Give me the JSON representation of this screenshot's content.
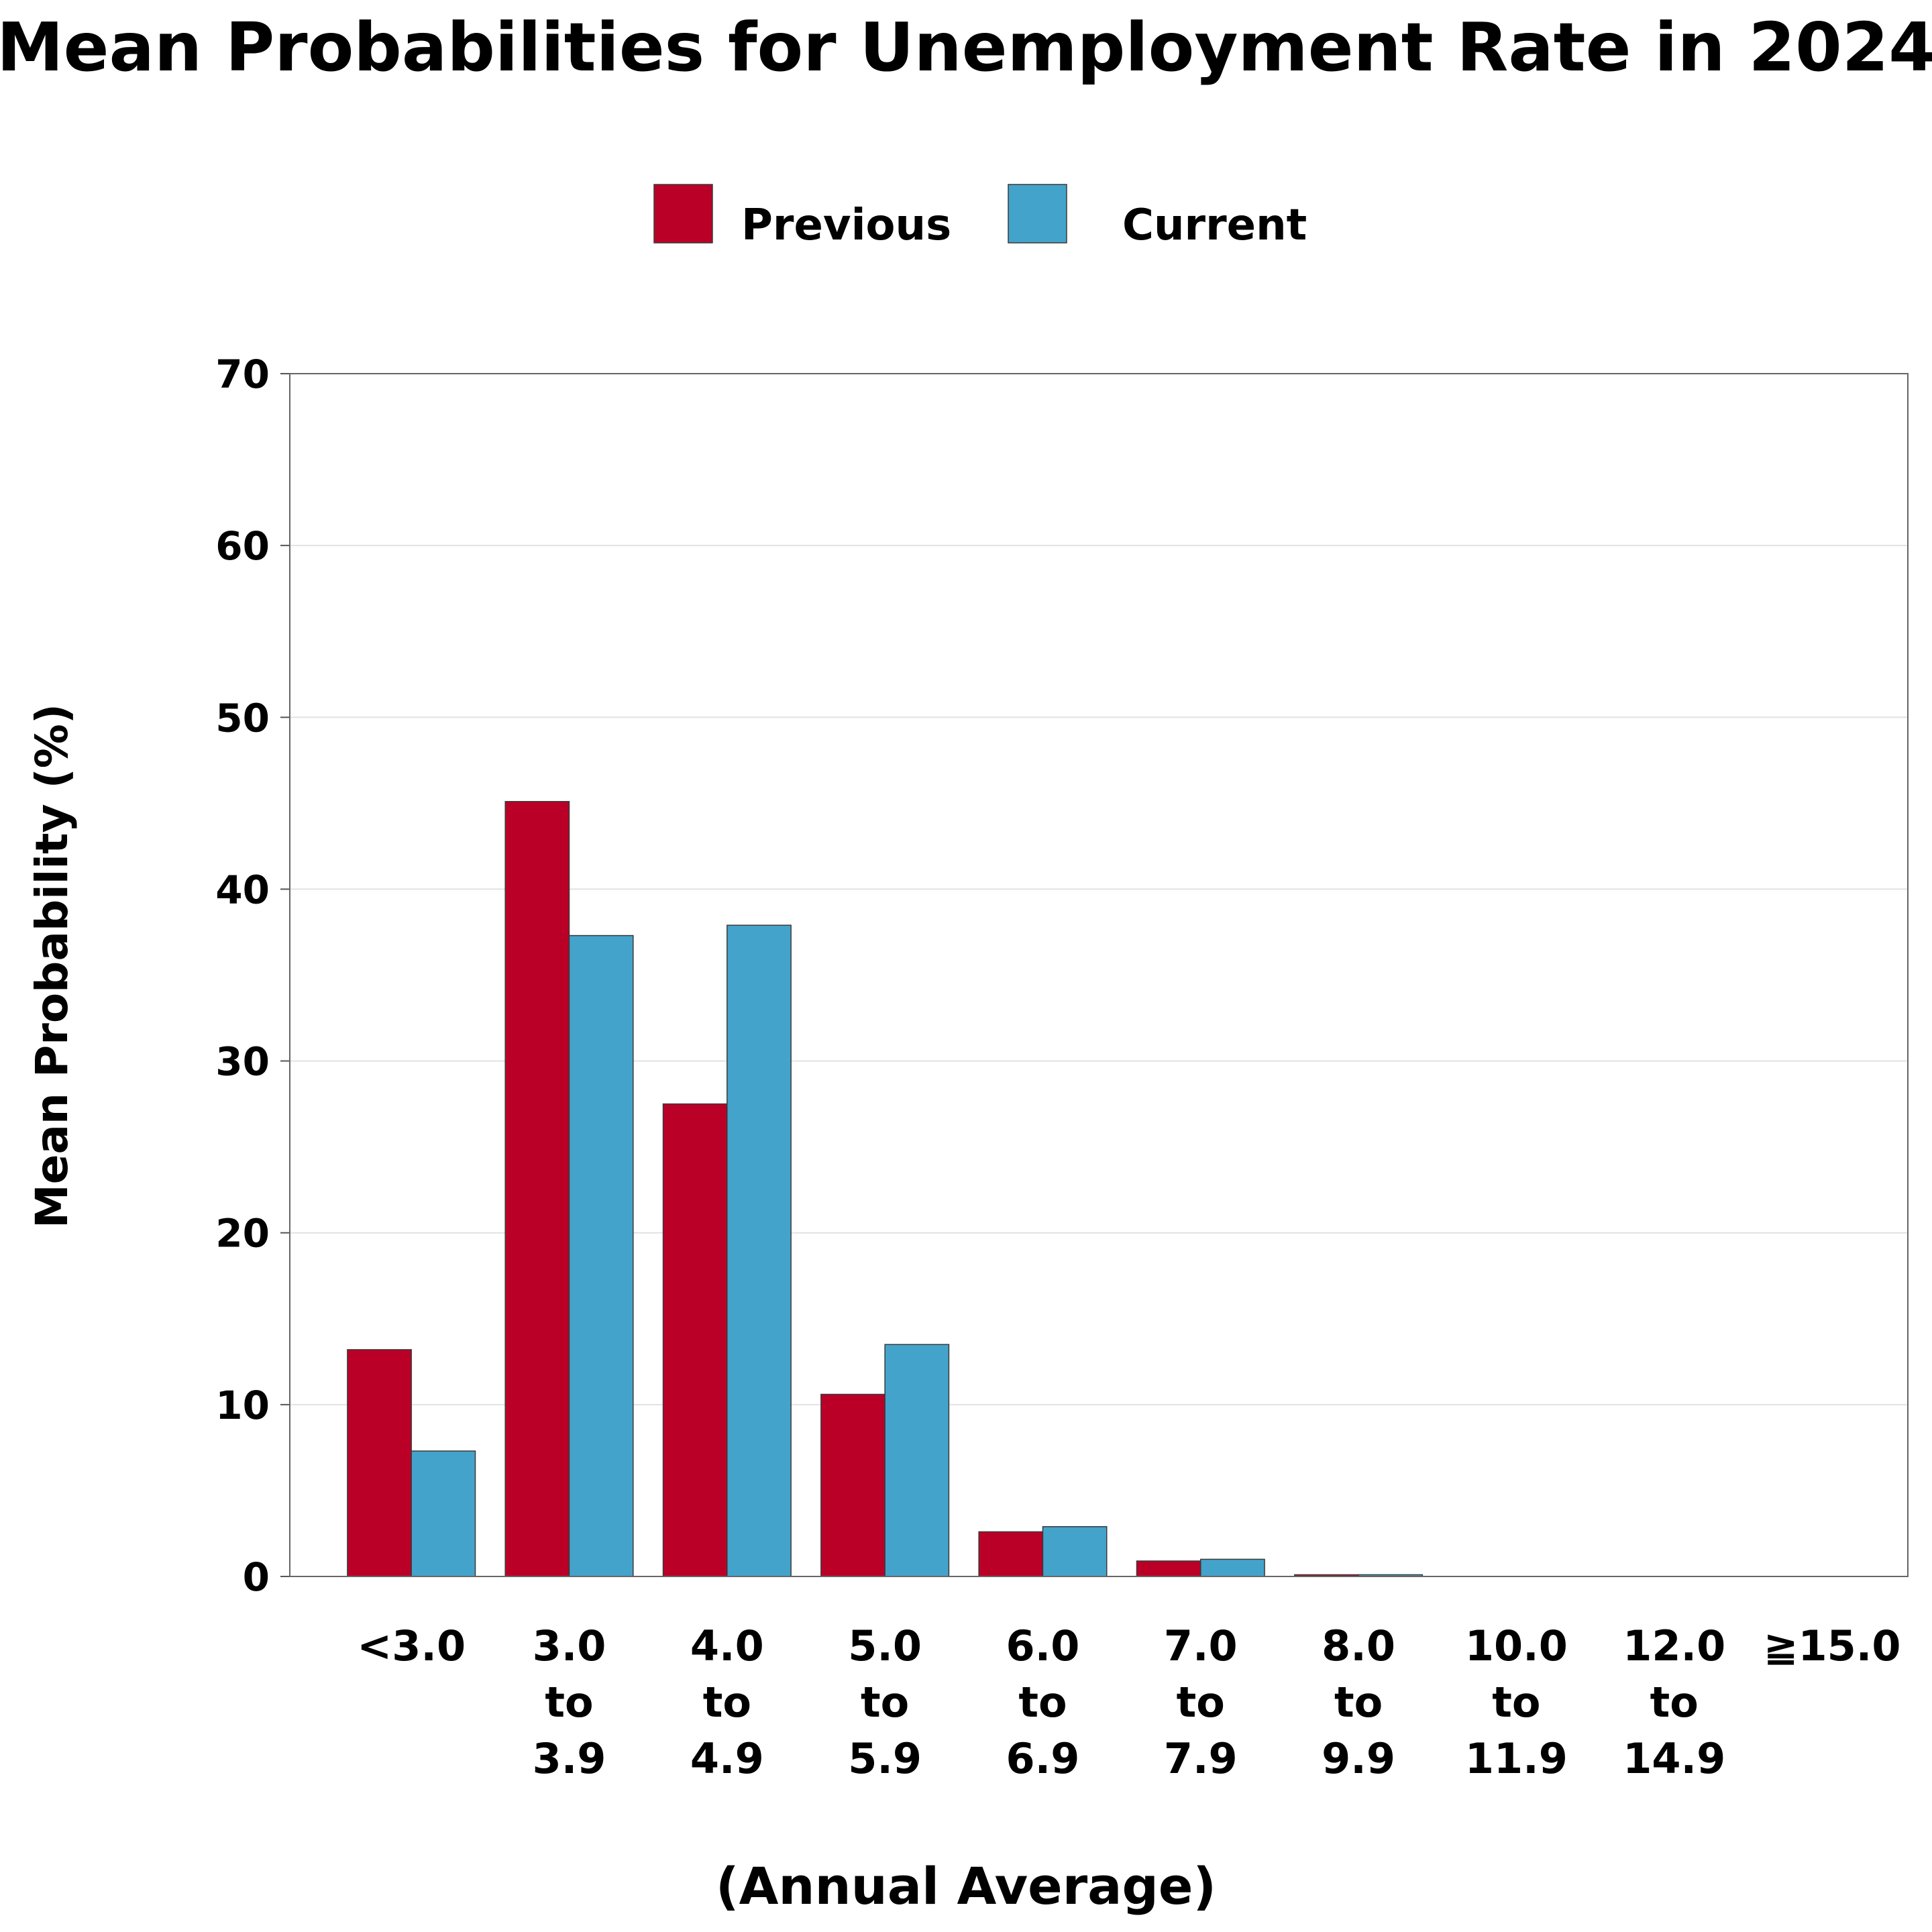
{
  "chart_data": {
    "type": "bar",
    "title": "Mean Probabilities for Unemployment Rate in 2024",
    "xlabel": "(Annual Average)",
    "ylabel": "Mean Probability (%)",
    "ylim": [
      0,
      70
    ],
    "yticks": [
      0,
      10,
      20,
      30,
      40,
      50,
      60,
      70
    ],
    "grid": true,
    "legend_position": "top-center",
    "categories": [
      [
        "<3.0"
      ],
      [
        "3.0",
        "to",
        "3.9"
      ],
      [
        "4.0",
        "to",
        "4.9"
      ],
      [
        "5.0",
        "to",
        "5.9"
      ],
      [
        "6.0",
        "to",
        "6.9"
      ],
      [
        "7.0",
        "to",
        "7.9"
      ],
      [
        "8.0",
        "to",
        "9.9"
      ],
      [
        "10.0",
        "to",
        "11.9"
      ],
      [
        "12.0",
        "to",
        "14.9"
      ],
      [
        "≧15.0"
      ]
    ],
    "series": [
      {
        "name": "Previous",
        "color": "#bb0027",
        "values": [
          13.2,
          45.1,
          27.5,
          10.6,
          2.6,
          0.9,
          0.1,
          0.0,
          0.0,
          0.0
        ]
      },
      {
        "name": "Current",
        "color": "#44a3cb",
        "values": [
          7.3,
          37.3,
          37.9,
          13.5,
          2.9,
          1.0,
          0.1,
          0.0,
          0.0,
          0.0
        ]
      }
    ]
  }
}
